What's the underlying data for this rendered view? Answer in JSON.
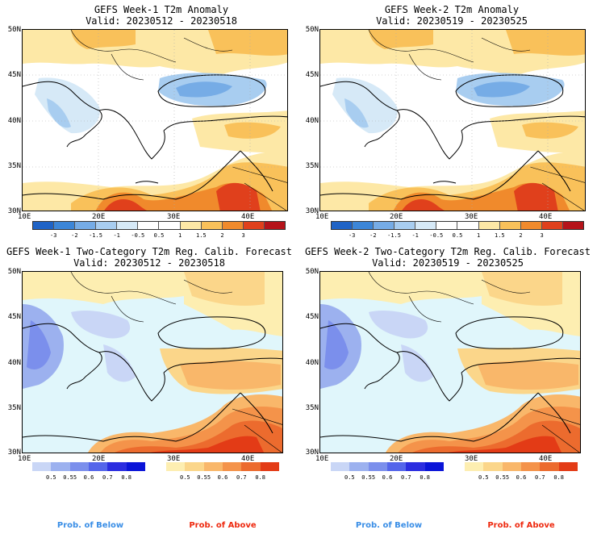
{
  "panels": [
    {
      "title": "GEFS Week-1 T2m Anomaly",
      "valid": "Valid: 20230512 - 20230518"
    },
    {
      "title": "GEFS Week-2 T2m Anomaly",
      "valid": "Valid: 20230519 - 20230525"
    },
    {
      "title": "GEFS Week-1 Two-Category T2m Reg. Calib. Forecast",
      "valid": "Valid: 20230512 - 20230518"
    },
    {
      "title": "GEFS Week-2 Two-Category T2m Reg. Calib. Forecast",
      "valid": "Valid: 20230519 - 20230525"
    }
  ],
  "lat_labels": [
    "50N",
    "45N",
    "40N",
    "35N",
    "30N"
  ],
  "lon_labels": [
    "10E",
    "20E",
    "30E",
    "40E"
  ],
  "anomaly_colorbar": {
    "labels": [
      "-3",
      "-2",
      "-1.5",
      "-1",
      "-0.5",
      "0.5",
      "1",
      "1.5",
      "2",
      "3"
    ],
    "colors": [
      "#1f63c6",
      "#3c86d8",
      "#76ace6",
      "#a8cdf0",
      "#d6e9f7",
      "#ffffff",
      "#ffffff",
      "#fde8a6",
      "#f9c15a",
      "#f08a2c",
      "#e0401c",
      "#b5131a"
    ]
  },
  "below_colorbar": {
    "labels": [
      "0.5",
      "0.55",
      "0.6",
      "0.7",
      "0.8"
    ],
    "colors": [
      "#c9d6f6",
      "#9cb1ef",
      "#7b8fec",
      "#5465ea",
      "#2b2de0",
      "#0a14d8"
    ]
  },
  "above_colorbar": {
    "labels": [
      "0.5",
      "0.55",
      "0.6",
      "0.7",
      "0.8"
    ],
    "colors": [
      "#fdeeb1",
      "#fbd68a",
      "#f9b76a",
      "#f4934a",
      "#ec6b2e",
      "#e33b16"
    ]
  },
  "captions": {
    "below": "Prob. of Below",
    "above": "Prob. of Above",
    "below_color": "#3a8ee6",
    "above_color": "#ee2a10"
  }
}
